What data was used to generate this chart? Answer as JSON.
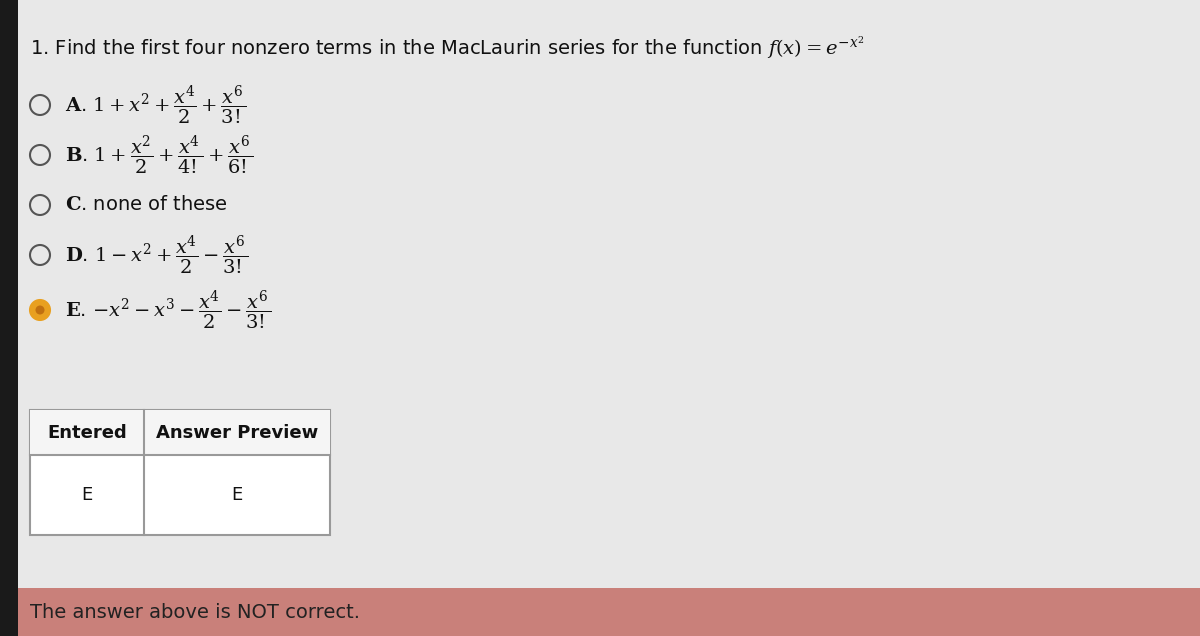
{
  "title_text": "1. Find the first four nonzero terms in the MacLaurin series for the function $f(x) = e^{-x^2}$",
  "options": [
    {
      "label": "A",
      "formula": "$1 + x^2 + \\dfrac{x^4}{2} + \\dfrac{x^6}{3!}$",
      "selected": false
    },
    {
      "label": "B",
      "formula": "$1 + \\dfrac{x^2}{2} + \\dfrac{x^4}{4!} + \\dfrac{x^6}{6!}$",
      "selected": false
    },
    {
      "label": "C",
      "formula": "none of these",
      "selected": false
    },
    {
      "label": "D",
      "formula": "$1 - x^2 + \\dfrac{x^4}{2} - \\dfrac{x^6}{3!}$",
      "selected": false
    },
    {
      "label": "E",
      "formula": "$-x^2 - x^3 - \\dfrac{x^4}{2} - \\dfrac{x^6}{3!}$",
      "selected": true
    }
  ],
  "table_headers": [
    "Entered",
    "Answer Preview"
  ],
  "table_row": [
    "E",
    "E"
  ],
  "footer_text": "The answer above is NOT correct.",
  "bg_color": "#d8d8d8",
  "content_bg": "#e8e8e8",
  "footer_bg": "#c9807a",
  "footer_text_color": "#222222",
  "title_fontsize": 14,
  "option_fontsize": 14,
  "table_fontsize": 13,
  "footer_fontsize": 14,
  "circle_color": "#555555",
  "filled_circle_color": "#e8a020",
  "selected_dot_color": "#c07010"
}
